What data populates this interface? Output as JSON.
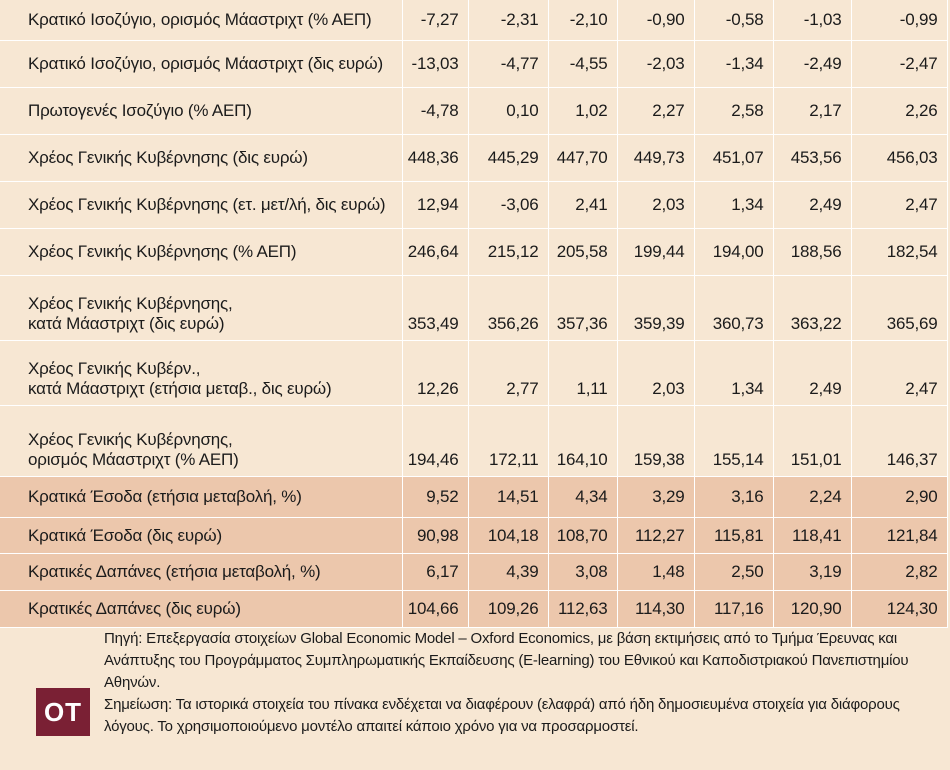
{
  "table": {
    "rows": [
      {
        "label": [
          "Κρατικό Ισοζύγιο, ορισμός Μάαστριχτ (% ΑΕΠ)"
        ],
        "values": [
          "-7,27",
          "-2,31",
          "-2,10",
          "-0,90",
          "-0,58",
          "-1,03",
          "-0,99"
        ],
        "highlight": false
      },
      {
        "label": [
          "Κρατικό Ισοζύγιο, ορισμός Μάαστριχτ (δις ευρώ)"
        ],
        "values": [
          "-13,03",
          "-4,77",
          "-4,55",
          "-2,03",
          "-1,34",
          "-2,49",
          "-2,47"
        ],
        "highlight": false
      },
      {
        "label": [
          "Πρωτογενές Ισοζύγιο (% ΑΕΠ)"
        ],
        "values": [
          "-4,78",
          "0,10",
          "1,02",
          "2,27",
          "2,58",
          "2,17",
          "2,26"
        ],
        "highlight": false
      },
      {
        "label": [
          "Χρέος Γενικής Κυβέρνησης (δις ευρώ)"
        ],
        "values": [
          "448,36",
          "445,29",
          "447,70",
          "449,73",
          "451,07",
          "453,56",
          "456,03"
        ],
        "highlight": false
      },
      {
        "label": [
          "Χρέος Γενικής Κυβέρνησης (ετ. μετ/λή, δις ευρώ)"
        ],
        "values": [
          "12,94",
          "-3,06",
          "2,41",
          "2,03",
          "1,34",
          "2,49",
          "2,47"
        ],
        "highlight": false
      },
      {
        "label": [
          "Χρέος Γενικής Κυβέρνησης (% ΑΕΠ)"
        ],
        "values": [
          "246,64",
          "215,12",
          "205,58",
          "199,44",
          "194,00",
          "188,56",
          "182,54"
        ],
        "highlight": false
      },
      {
        "label": [
          "Χρέος Γενικής Κυβέρνησης,",
          "κατά Μάαστριχτ (δις ευρώ)"
        ],
        "values": [
          "353,49",
          "356,26",
          "357,36",
          "359,39",
          "360,73",
          "363,22",
          "365,69"
        ],
        "highlight": false
      },
      {
        "label": [
          "Χρέος Γενικής Κυβέρν.,",
          "κατά Μάαστριχτ (ετήσια μεταβ., δις ευρώ)"
        ],
        "values": [
          "12,26",
          "2,77",
          "1,11",
          "2,03",
          "1,34",
          "2,49",
          "2,47"
        ],
        "highlight": false
      },
      {
        "label": [
          "Χρέος Γενικής Κυβέρνησης,",
          "ορισμός Μάαστριχτ (% ΑΕΠ)"
        ],
        "values": [
          "194,46",
          "172,11",
          "164,10",
          "159,38",
          "155,14",
          "151,01",
          "146,37"
        ],
        "highlight": false
      },
      {
        "label": [
          "Κρατικά Έσοδα (ετήσια μεταβολή, %)"
        ],
        "values": [
          "9,52",
          "14,51",
          "4,34",
          "3,29",
          "3,16",
          "2,24",
          "2,90"
        ],
        "highlight": true
      },
      {
        "label": [
          "Κρατικά Έσοδα (δις ευρώ)"
        ],
        "values": [
          "90,98",
          "104,18",
          "108,70",
          "112,27",
          "115,81",
          "118,41",
          "121,84"
        ],
        "highlight": true
      },
      {
        "label": [
          "Κρατικές Δαπάνες (ετήσια μεταβολή, %)"
        ],
        "values": [
          "6,17",
          "4,39",
          "3,08",
          "1,48",
          "2,50",
          "3,19",
          "2,82"
        ],
        "highlight": true
      },
      {
        "label": [
          "Κρατικές Δαπάνες (δις ευρώ)"
        ],
        "values": [
          "104,66",
          "109,26",
          "112,63",
          "114,30",
          "117,16",
          "120,90",
          "124,30"
        ],
        "highlight": true
      }
    ]
  },
  "footer": {
    "source": "Πηγή: Επεξεργασία στοιχείων Global Economic Model – Oxford Economics, με βάση εκτιμήσεις από το Τμήμα Έρευνας και Ανάπτυξης του Προγράμματος Συμπληρωματικής Εκπαίδευσης (E-learning) του Εθνικού και Καποδιστριακού Πανεπιστημίου Αθηνών.",
    "note": "Σημείωση: Τα ιστορικά στοιχεία του πίνακα ενδέχεται να διαφέρουν (ελαφρά) από ήδη δημοσιευμένα στοιχεία για διάφορους λόγους. Το χρησιμοποιούμενο μοντέλο απαιτεί κάποιο χρόνο για να προσαρμοστεί.",
    "logo_text": "ΟΤ"
  },
  "colors": {
    "background": "#f7e7d3",
    "highlight_rows": "#ecc7ac",
    "logo_bg": "#7a2034"
  }
}
